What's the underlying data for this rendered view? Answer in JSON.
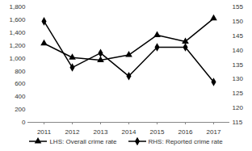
{
  "chart_data": {
    "type": "line",
    "categories": [
      "2011",
      "2012",
      "2013",
      "2014",
      "2015",
      "2016",
      "2017"
    ],
    "series": [
      {
        "name": "LHS: Overall crime rate",
        "color": "#000000",
        "marker": "triangle",
        "values": [
          1230,
          1010,
          970,
          1050,
          1360,
          1260,
          1620
        ]
      },
      {
        "name": "RHS: Reported crime rate",
        "color": "#000000",
        "marker": "diamond",
        "axis": "y2",
        "values": [
          150,
          134,
          139,
          131,
          141,
          141,
          129
        ]
      }
    ],
    "ylim": [
      0,
      1800
    ],
    "yticks": [
      0,
      200,
      400,
      600,
      800,
      1000,
      1200,
      1400,
      1600,
      1800
    ],
    "y2lim": [
      115,
      155
    ],
    "y2ticks": [
      115,
      120,
      125,
      130,
      135,
      140,
      145,
      150,
      155
    ],
    "grid": false,
    "legend": "bottom"
  }
}
